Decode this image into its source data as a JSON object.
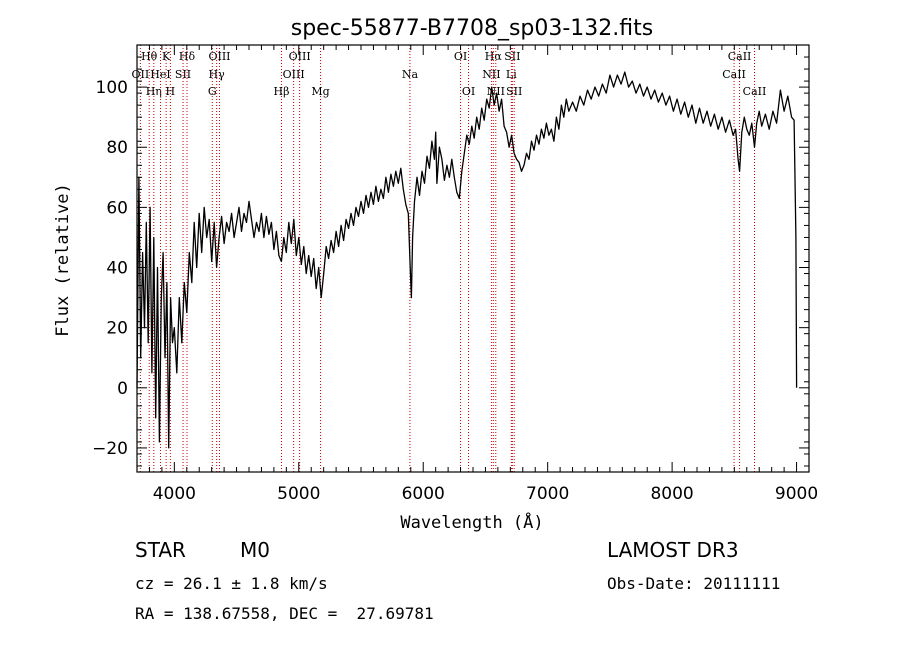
{
  "chart_data": {
    "type": "line",
    "title": "spec-55877-B7708_sp03-132.fits",
    "xlabel": "Wavelength (Å)",
    "ylabel": "Flux (relative)",
    "xlim": [
      3700,
      9100
    ],
    "ylim": [
      -28,
      114
    ],
    "xticks": [
      4000,
      5000,
      6000,
      7000,
      8000,
      9000
    ],
    "yticks": [
      -20,
      0,
      20,
      40,
      60,
      80,
      100
    ],
    "grid": false,
    "series": [
      {
        "name": "spectrum",
        "points": [
          [
            3700,
            0
          ],
          [
            3715,
            70
          ],
          [
            3730,
            10
          ],
          [
            3745,
            45
          ],
          [
            3760,
            20
          ],
          [
            3775,
            55
          ],
          [
            3790,
            15
          ],
          [
            3805,
            60
          ],
          [
            3820,
            5
          ],
          [
            3835,
            50
          ],
          [
            3850,
            -10
          ],
          [
            3865,
            40
          ],
          [
            3880,
            -18
          ],
          [
            3895,
            30
          ],
          [
            3910,
            45
          ],
          [
            3925,
            10
          ],
          [
            3940,
            35
          ],
          [
            3955,
            -20
          ],
          [
            3970,
            30
          ],
          [
            3985,
            15
          ],
          [
            4000,
            20
          ],
          [
            4020,
            5
          ],
          [
            4040,
            30
          ],
          [
            4060,
            15
          ],
          [
            4080,
            35
          ],
          [
            4100,
            25
          ],
          [
            4120,
            45
          ],
          [
            4140,
            35
          ],
          [
            4160,
            55
          ],
          [
            4180,
            40
          ],
          [
            4200,
            58
          ],
          [
            4220,
            45
          ],
          [
            4240,
            60
          ],
          [
            4260,
            50
          ],
          [
            4280,
            56
          ],
          [
            4300,
            42
          ],
          [
            4320,
            55
          ],
          [
            4340,
            40
          ],
          [
            4360,
            50
          ],
          [
            4380,
            57
          ],
          [
            4400,
            48
          ],
          [
            4420,
            55
          ],
          [
            4440,
            52
          ],
          [
            4460,
            58
          ],
          [
            4480,
            50
          ],
          [
            4500,
            55
          ],
          [
            4520,
            60
          ],
          [
            4540,
            52
          ],
          [
            4560,
            58
          ],
          [
            4580,
            55
          ],
          [
            4600,
            62
          ],
          [
            4620,
            56
          ],
          [
            4640,
            50
          ],
          [
            4660,
            55
          ],
          [
            4680,
            52
          ],
          [
            4700,
            58
          ],
          [
            4720,
            50
          ],
          [
            4740,
            57
          ],
          [
            4760,
            51
          ],
          [
            4780,
            55
          ],
          [
            4800,
            46
          ],
          [
            4820,
            52
          ],
          [
            4840,
            44
          ],
          [
            4860,
            42
          ],
          [
            4880,
            50
          ],
          [
            4900,
            45
          ],
          [
            4920,
            55
          ],
          [
            4940,
            48
          ],
          [
            4960,
            56
          ],
          [
            4980,
            44
          ],
          [
            5000,
            50
          ],
          [
            5020,
            41
          ],
          [
            5040,
            47
          ],
          [
            5060,
            38
          ],
          [
            5080,
            44
          ],
          [
            5100,
            37
          ],
          [
            5120,
            43
          ],
          [
            5140,
            33
          ],
          [
            5160,
            40
          ],
          [
            5180,
            30
          ],
          [
            5200,
            38
          ],
          [
            5220,
            47
          ],
          [
            5240,
            43
          ],
          [
            5260,
            49
          ],
          [
            5280,
            45
          ],
          [
            5300,
            52
          ],
          [
            5320,
            47
          ],
          [
            5340,
            54
          ],
          [
            5360,
            49
          ],
          [
            5380,
            56
          ],
          [
            5400,
            53
          ],
          [
            5420,
            58
          ],
          [
            5440,
            54
          ],
          [
            5460,
            60
          ],
          [
            5480,
            57
          ],
          [
            5500,
            62
          ],
          [
            5520,
            58
          ],
          [
            5540,
            64
          ],
          [
            5560,
            60
          ],
          [
            5580,
            65
          ],
          [
            5600,
            61
          ],
          [
            5620,
            67
          ],
          [
            5640,
            62
          ],
          [
            5660,
            66
          ],
          [
            5680,
            63
          ],
          [
            5700,
            70
          ],
          [
            5720,
            65
          ],
          [
            5740,
            71
          ],
          [
            5760,
            67
          ],
          [
            5780,
            72
          ],
          [
            5800,
            68
          ],
          [
            5820,
            73
          ],
          [
            5840,
            66
          ],
          [
            5860,
            61
          ],
          [
            5880,
            58
          ],
          [
            5895,
            40
          ],
          [
            5905,
            30
          ],
          [
            5915,
            50
          ],
          [
            5930,
            62
          ],
          [
            5950,
            70
          ],
          [
            5970,
            64
          ],
          [
            5990,
            72
          ],
          [
            6010,
            68
          ],
          [
            6030,
            77
          ],
          [
            6050,
            73
          ],
          [
            6070,
            82
          ],
          [
            6090,
            76
          ],
          [
            6100,
            85
          ],
          [
            6110,
            68
          ],
          [
            6130,
            80
          ],
          [
            6150,
            76
          ],
          [
            6170,
            69
          ],
          [
            6190,
            74
          ],
          [
            6210,
            70
          ],
          [
            6230,
            76
          ],
          [
            6250,
            70
          ],
          [
            6270,
            65
          ],
          [
            6290,
            63
          ],
          [
            6310,
            72
          ],
          [
            6330,
            78
          ],
          [
            6350,
            84
          ],
          [
            6370,
            81
          ],
          [
            6390,
            87
          ],
          [
            6410,
            83
          ],
          [
            6430,
            90
          ],
          [
            6450,
            86
          ],
          [
            6470,
            93
          ],
          [
            6490,
            89
          ],
          [
            6510,
            96
          ],
          [
            6530,
            93
          ],
          [
            6550,
            100
          ],
          [
            6570,
            94
          ],
          [
            6590,
            98
          ],
          [
            6610,
            92
          ],
          [
            6630,
            96
          ],
          [
            6650,
            87
          ],
          [
            6670,
            85
          ],
          [
            6690,
            80
          ],
          [
            6710,
            84
          ],
          [
            6730,
            78
          ],
          [
            6750,
            76
          ],
          [
            6770,
            75
          ],
          [
            6790,
            72
          ],
          [
            6810,
            74
          ],
          [
            6830,
            78
          ],
          [
            6850,
            76
          ],
          [
            6870,
            82
          ],
          [
            6890,
            79
          ],
          [
            6910,
            84
          ],
          [
            6930,
            81
          ],
          [
            6950,
            86
          ],
          [
            6970,
            83
          ],
          [
            6990,
            88
          ],
          [
            7010,
            84
          ],
          [
            7030,
            86
          ],
          [
            7050,
            82
          ],
          [
            7070,
            90
          ],
          [
            7090,
            86
          ],
          [
            7110,
            94
          ],
          [
            7130,
            90
          ],
          [
            7150,
            96
          ],
          [
            7170,
            92
          ],
          [
            7200,
            95
          ],
          [
            7230,
            92
          ],
          [
            7260,
            97
          ],
          [
            7290,
            94
          ],
          [
            7320,
            99
          ],
          [
            7350,
            96
          ],
          [
            7380,
            100
          ],
          [
            7410,
            97
          ],
          [
            7440,
            101
          ],
          [
            7470,
            98
          ],
          [
            7500,
            104
          ],
          [
            7530,
            100
          ],
          [
            7560,
            104
          ],
          [
            7590,
            101
          ],
          [
            7620,
            105
          ],
          [
            7650,
            100
          ],
          [
            7680,
            102
          ],
          [
            7710,
            98
          ],
          [
            7740,
            101
          ],
          [
            7770,
            97
          ],
          [
            7800,
            100
          ],
          [
            7830,
            96
          ],
          [
            7860,
            99
          ],
          [
            7890,
            95
          ],
          [
            7920,
            98
          ],
          [
            7950,
            94
          ],
          [
            7980,
            97
          ],
          [
            8010,
            92
          ],
          [
            8040,
            96
          ],
          [
            8070,
            91
          ],
          [
            8100,
            95
          ],
          [
            8130,
            90
          ],
          [
            8160,
            94
          ],
          [
            8190,
            88
          ],
          [
            8220,
            93
          ],
          [
            8250,
            88
          ],
          [
            8280,
            92
          ],
          [
            8310,
            87
          ],
          [
            8340,
            91
          ],
          [
            8370,
            86
          ],
          [
            8400,
            90
          ],
          [
            8430,
            85
          ],
          [
            8460,
            89
          ],
          [
            8490,
            84
          ],
          [
            8510,
            86
          ],
          [
            8530,
            76
          ],
          [
            8542,
            72
          ],
          [
            8560,
            85
          ],
          [
            8580,
            90
          ],
          [
            8600,
            86
          ],
          [
            8620,
            84
          ],
          [
            8640,
            88
          ],
          [
            8662,
            80
          ],
          [
            8680,
            88
          ],
          [
            8700,
            92
          ],
          [
            8720,
            87
          ],
          [
            8750,
            91
          ],
          [
            8780,
            86
          ],
          [
            8810,
            92
          ],
          [
            8840,
            88
          ],
          [
            8870,
            99
          ],
          [
            8900,
            92
          ],
          [
            8930,
            97
          ],
          [
            8960,
            90
          ],
          [
            8980,
            89
          ],
          [
            8995,
            50
          ],
          [
            9000,
            0
          ]
        ]
      }
    ],
    "spectral_lines": [
      {
        "label": "Hθ",
        "x": 3798,
        "row": 0
      },
      {
        "label": "OII",
        "x": 3727,
        "row": 1
      },
      {
        "label": "Hη",
        "x": 3835,
        "row": 2
      },
      {
        "label": "K",
        "x": 3934,
        "row": 0
      },
      {
        "label": "HeI",
        "x": 3889,
        "row": 1
      },
      {
        "label": "H",
        "x": 3968,
        "row": 2
      },
      {
        "label": "Hδ",
        "x": 4102,
        "row": 0
      },
      {
        "label": "SII",
        "x": 4070,
        "row": 1
      },
      {
        "label": "OIII",
        "x": 4363,
        "row": 0
      },
      {
        "label": "Hγ",
        "x": 4340,
        "row": 1
      },
      {
        "label": "G",
        "x": 4305,
        "row": 2
      },
      {
        "label": "Hβ",
        "x": 4861,
        "row": 2
      },
      {
        "label": "OIII",
        "x": 5007,
        "row": 0
      },
      {
        "label": "OIII",
        "x": 4959,
        "row": 1
      },
      {
        "label": "Mg",
        "x": 5175,
        "row": 2
      },
      {
        "label": "Na",
        "x": 5893,
        "row": 1
      },
      {
        "label": "OI",
        "x": 6300,
        "row": 0
      },
      {
        "label": "OI",
        "x": 6364,
        "row": 2
      },
      {
        "label": "Hα",
        "x": 6563,
        "row": 0
      },
      {
        "label": "SII",
        "x": 6716,
        "row": 0
      },
      {
        "label": "NII",
        "x": 6548,
        "row": 1
      },
      {
        "label": "Li",
        "x": 6708,
        "row": 1
      },
      {
        "label": "NII",
        "x": 6583,
        "row": 2
      },
      {
        "label": "SII",
        "x": 6731,
        "row": 2
      },
      {
        "label": "CaII",
        "x": 8542,
        "row": 0
      },
      {
        "label": "CaII",
        "x": 8498,
        "row": 1
      },
      {
        "label": "CaII",
        "x": 8662,
        "row": 2
      }
    ],
    "line_color": "#cc0000",
    "spectrum_color": "#000000"
  },
  "info": {
    "class": "STAR",
    "subclass": "M0",
    "survey": "LAMOST DR3",
    "cz": "cz = 26.1 ± 1.8 km/s",
    "obs_date": "Obs-Date: 20111111",
    "radec": "RA = 138.67558, DEC =  27.69781"
  }
}
